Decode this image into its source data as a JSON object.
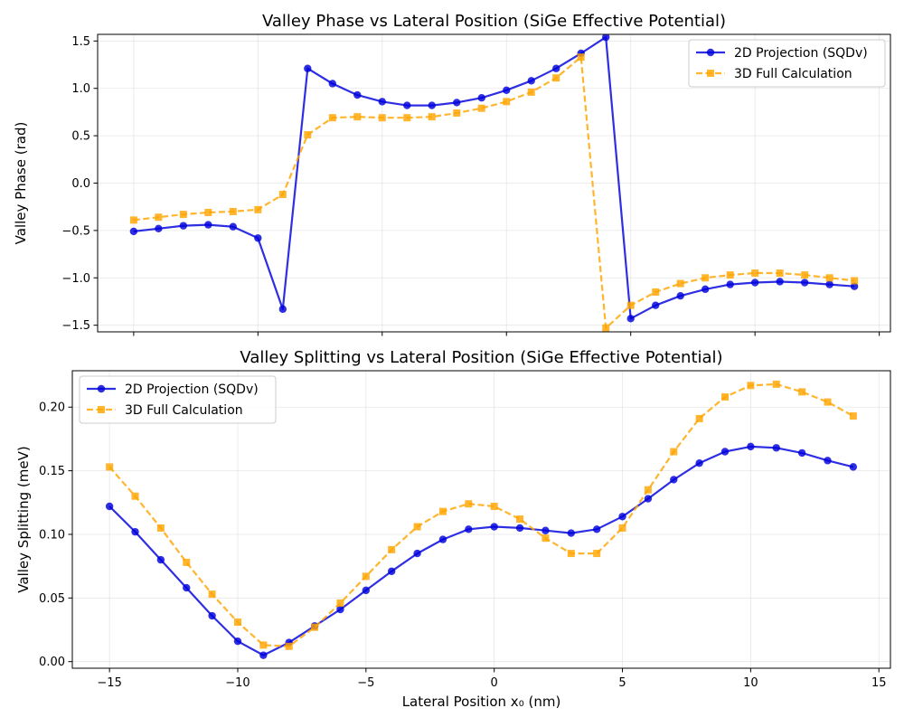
{
  "chart_data": [
    {
      "type": "line",
      "title": "Valley Phase vs Lateral Position (SiGe Effective Potential)",
      "xlabel": "",
      "ylabel": "Valley Phase (rad)",
      "xlim": [
        -16.45,
        15.45
      ],
      "ylim": [
        -1.57,
        1.57
      ],
      "xticks": [
        -15,
        -10,
        -5,
        0,
        5,
        10,
        15
      ],
      "xtick_labels": [
        "",
        "",
        "",
        "",
        "",
        "",
        ""
      ],
      "yticks": [
        -1.5,
        -1.0,
        -0.5,
        0.0,
        0.5,
        1.0,
        1.5
      ],
      "ytick_labels": [
        "−1.5",
        "−1.0",
        "−0.5",
        "0.0",
        "0.5",
        "1.0",
        "1.5"
      ],
      "grid": true,
      "legend_position": "upper right",
      "x": [
        -15,
        -14,
        -13,
        -12,
        -11,
        -10,
        -9,
        -8,
        -7,
        -6,
        -5,
        -4,
        -3,
        -2,
        -1,
        0,
        1,
        2,
        3,
        4,
        5,
        6,
        7,
        8,
        9,
        10,
        11,
        12,
        13,
        14
      ],
      "series": [
        {
          "name": "2D Projection (SQDv)",
          "color": "#0000dd",
          "dash": "solid",
          "marker": "circle",
          "values": [
            -0.51,
            -0.48,
            -0.45,
            -0.44,
            -0.46,
            -0.58,
            -1.33,
            1.21,
            1.05,
            0.93,
            0.86,
            0.82,
            0.82,
            0.85,
            0.9,
            0.98,
            1.08,
            1.21,
            1.37,
            1.54,
            -1.43,
            -1.29,
            -1.19,
            -1.12,
            -1.07,
            -1.05,
            -1.04,
            -1.05,
            -1.07,
            -1.09
          ]
        },
        {
          "name": "3D Full Calculation",
          "color": "#ffa500",
          "dash": "dashed",
          "marker": "square",
          "values": [
            -0.39,
            -0.36,
            -0.33,
            -0.31,
            -0.3,
            -0.28,
            -0.12,
            0.51,
            0.69,
            0.7,
            0.69,
            0.69,
            0.7,
            0.74,
            0.79,
            0.86,
            0.96,
            1.11,
            1.33,
            -1.53,
            -1.29,
            -1.15,
            -1.06,
            -1.0,
            -0.97,
            -0.95,
            -0.95,
            -0.97,
            -1.0,
            -1.03
          ]
        }
      ]
    },
    {
      "type": "line",
      "title": "Valley Splitting vs Lateral Position (SiGe Effective Potential)",
      "xlabel": "Lateral Position x₀ (nm)",
      "ylabel": "Valley Splitting (meV)",
      "xlim": [
        -16.45,
        15.45
      ],
      "ylim": [
        -0.0052,
        0.2286
      ],
      "xticks": [
        -15,
        -10,
        -5,
        0,
        5,
        10,
        15
      ],
      "xtick_labels": [
        "−15",
        "−10",
        "−5",
        "0",
        "5",
        "10",
        "15"
      ],
      "yticks": [
        0.0,
        0.05,
        0.1,
        0.15,
        0.2
      ],
      "ytick_labels": [
        "0.00",
        "0.05",
        "0.10",
        "0.15",
        "0.20"
      ],
      "grid": true,
      "legend_position": "upper left",
      "x": [
        -15,
        -14,
        -13,
        -12,
        -11,
        -10,
        -9,
        -8,
        -7,
        -6,
        -5,
        -4,
        -3,
        -2,
        -1,
        0,
        1,
        2,
        3,
        4,
        5,
        6,
        7,
        8,
        9,
        10,
        11,
        12,
        13,
        14
      ],
      "series": [
        {
          "name": "2D Projection (SQDv)",
          "color": "#0000dd",
          "dash": "solid",
          "marker": "circle",
          "values": [
            0.122,
            0.102,
            0.08,
            0.058,
            0.036,
            0.016,
            0.005,
            0.015,
            0.028,
            0.041,
            0.056,
            0.071,
            0.085,
            0.096,
            0.104,
            0.106,
            0.105,
            0.103,
            0.101,
            0.104,
            0.114,
            0.128,
            0.143,
            0.156,
            0.165,
            0.169,
            0.168,
            0.164,
            0.158,
            0.153
          ]
        },
        {
          "name": "3D Full Calculation",
          "color": "#ffa500",
          "dash": "dashed",
          "marker": "square",
          "values": [
            0.153,
            0.13,
            0.105,
            0.078,
            0.053,
            0.031,
            0.013,
            0.012,
            0.027,
            0.046,
            0.067,
            0.088,
            0.106,
            0.118,
            0.124,
            0.122,
            0.112,
            0.097,
            0.085,
            0.085,
            0.105,
            0.135,
            0.165,
            0.191,
            0.208,
            0.217,
            0.218,
            0.212,
            0.204,
            0.193
          ]
        }
      ]
    }
  ]
}
